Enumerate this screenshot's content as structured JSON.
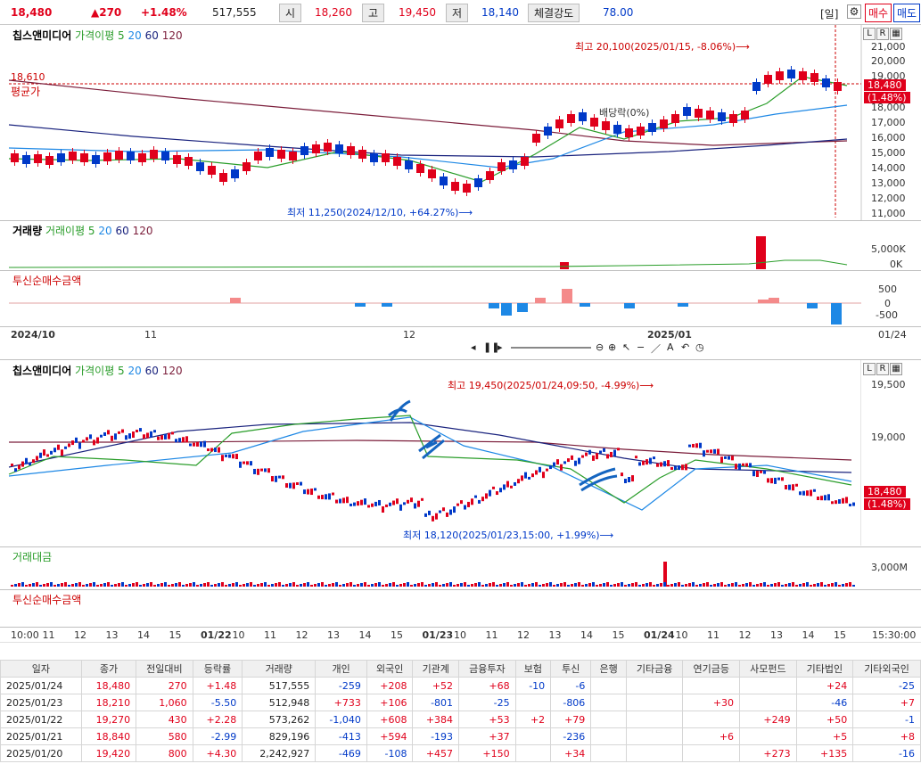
{
  "top": {
    "price": "18,480",
    "change": "▲270",
    "rate": "+1.48%",
    "volume": "517,555",
    "open_label": "시",
    "open": "18,260",
    "high_label": "고",
    "high": "19,450",
    "low_label": "저",
    "low": "18,140",
    "strength_label": "체결강도",
    "strength": "78.00",
    "period_btn": "[일]",
    "buy_btn": "매수",
    "sell_btn": "매도"
  },
  "daily": {
    "legend_name": "칩스앤미디어",
    "legend_ma": "가격이평 5",
    "legend_20": "20",
    "legend_60": "60",
    "legend_120": "120",
    "avg_value": "18,610",
    "avg_label": "평균가",
    "high_note": "최고 20,100(2025/01/15, -8.06%)⟶",
    "low_note": "최저 11,250(2024/12/10, +64.27%)⟶",
    "dividend_note": "배당락(0%)",
    "price_box_1": "18,480",
    "price_box_2": "(1.48%)",
    "y_ticks": [
      "21,000",
      "20,000",
      "19,000",
      "18,000",
      "17,000",
      "16,000",
      "15,000",
      "14,000",
      "13,000",
      "12,000",
      "11,000"
    ],
    "vol_legend": "거래량",
    "vol_ma": "거래이평 5",
    "vol_20": "20",
    "vol_60": "60",
    "vol_120": "120",
    "vol_ticks": [
      "5,000K",
      "0K"
    ],
    "inst_legend": "투신순매수금액",
    "inst_ticks": [
      "500",
      "0",
      "-500"
    ],
    "x_labels": [
      "2024/10",
      "11",
      "12",
      "2025/01",
      "01/24"
    ]
  },
  "intraday": {
    "legend_name": "칩스앤미디어",
    "legend_ma": "가격이평 5",
    "legend_20": "20",
    "legend_60": "60",
    "legend_120": "120",
    "high_note": "최고 19,450(2025/01/24,09:50, -4.99%)⟶",
    "low_note": "최저 18,120(2025/01/23,15:00, +1.99%)⟶",
    "price_box_1": "18,480",
    "price_box_2": "(1.48%)",
    "y_ticks": [
      "19,500",
      "19,000"
    ],
    "amt_legend": "거래대금",
    "amt_tick": "3,000M",
    "inst_legend": "투신순매수금액",
    "x_labels": [
      "10:00",
      "11",
      "12",
      "13",
      "14",
      "15",
      "01/22",
      "10",
      "11",
      "12",
      "13",
      "14",
      "15",
      "01/23",
      "10",
      "11",
      "12",
      "13",
      "14",
      "15",
      "01/24",
      "10",
      "11",
      "12",
      "13",
      "14",
      "15",
      "15:30:00"
    ]
  },
  "table": {
    "headers": [
      "일자",
      "종가",
      "전일대비",
      "등락률",
      "거래량",
      "개인",
      "외국인",
      "기관계",
      "금융투자",
      "보험",
      "투신",
      "은행",
      "기타금융",
      "연기금등",
      "사모펀드",
      "기타법인",
      "기타외국인"
    ],
    "rows": [
      [
        "2025/01/24",
        "18,480",
        "270",
        "+1.48",
        "517,555",
        "-259",
        "+208",
        "+52",
        "+68",
        "-10",
        "-6",
        "",
        "",
        "",
        "",
        "+24",
        "-25"
      ],
      [
        "2025/01/23",
        "18,210",
        "1,060",
        "-5.50",
        "512,948",
        "+733",
        "+106",
        "-801",
        "-25",
        "",
        "-806",
        "",
        "",
        "+30",
        "",
        "-46",
        "+7"
      ],
      [
        "2025/01/22",
        "19,270",
        "430",
        "+2.28",
        "573,262",
        "-1,040",
        "+608",
        "+384",
        "+53",
        "+2",
        "+79",
        "",
        "",
        "",
        "+249",
        "+50",
        "-1"
      ],
      [
        "2025/01/21",
        "18,840",
        "580",
        "-2.99",
        "829,196",
        "-413",
        "+594",
        "-193",
        "+37",
        "",
        "-236",
        "",
        "",
        "+6",
        "",
        "+5",
        "+8"
      ],
      [
        "2025/01/20",
        "19,420",
        "800",
        "+4.30",
        "2,242,927",
        "-469",
        "-108",
        "+457",
        "+150",
        "",
        "+34",
        "",
        "",
        "",
        "+273",
        "+135",
        "-16"
      ]
    ]
  },
  "colors": {
    "up": "#e0001b",
    "down": "#0039c8",
    "highlight": "#fff200"
  }
}
